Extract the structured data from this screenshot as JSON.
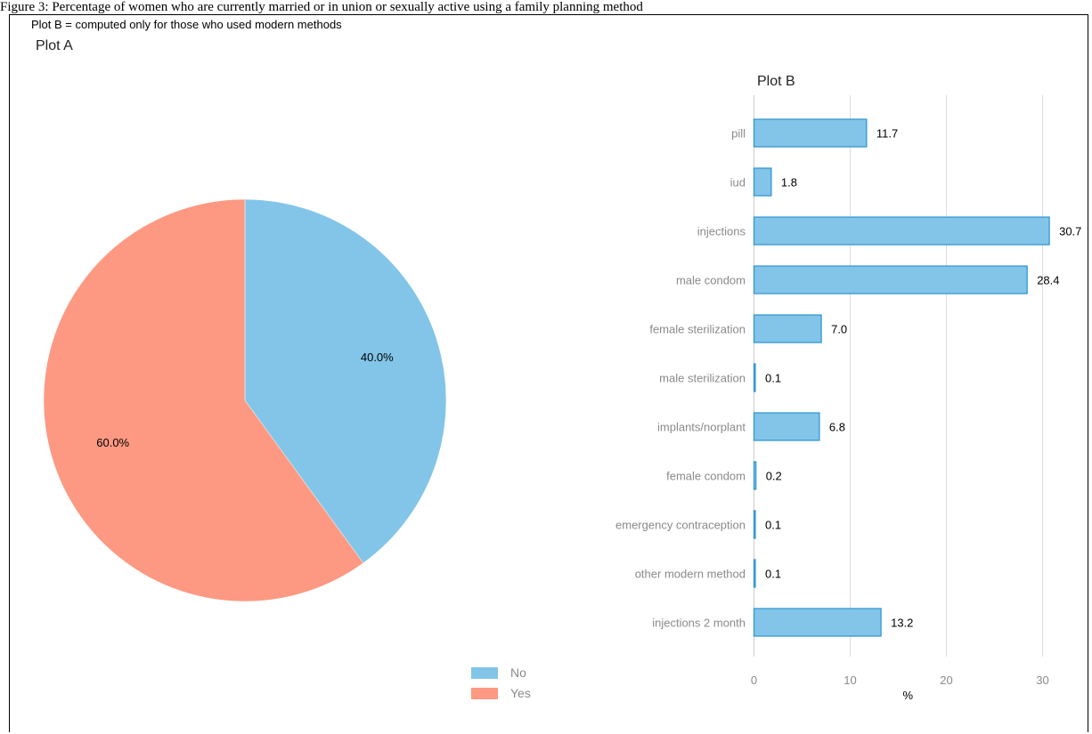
{
  "caption": "Figure 3: Percentage of women who are currently married or in union or sexually active using a family planning method",
  "subtitle": "Plot B = computed only for those who used modern methods",
  "colors": {
    "no": "#82c5e8",
    "yes": "#fd9982",
    "bar_fill": "#82c5e8",
    "bar_stroke": "#2a92d2",
    "grid": "#dddddd"
  },
  "chart_data": [
    {
      "type": "pie",
      "title": "Plot A",
      "slices": [
        {
          "label": "No",
          "value": 40.0,
          "display": "40.0%",
          "color": "#82c5e8"
        },
        {
          "label": "Yes",
          "value": 60.0,
          "display": "60.0%",
          "color": "#fd9982"
        }
      ],
      "legend": {
        "placement": "bottom-right",
        "entries": [
          "No",
          "Yes"
        ]
      }
    },
    {
      "type": "bar",
      "orientation": "horizontal",
      "title": "Plot B",
      "categories": [
        "pill",
        "iud",
        "injections",
        "male condom",
        "female sterilization",
        "male sterilization",
        "implants/norplant",
        "female condom",
        "emergency contraception",
        "other modern method",
        "injections 2 month"
      ],
      "values": [
        11.7,
        1.8,
        30.7,
        28.4,
        7.0,
        0.1,
        6.8,
        0.2,
        0.1,
        0.1,
        13.2
      ],
      "value_labels": [
        "11.7",
        "1.8",
        "30.7",
        "28.4",
        "7.0",
        "0.1",
        "6.8",
        "0.2",
        "0.1",
        "0.1",
        "13.2"
      ],
      "xlabel": "%",
      "ylabel": "",
      "xlim": [
        0,
        33
      ],
      "xticks": [
        0,
        10,
        20,
        30
      ],
      "grid": true
    }
  ]
}
